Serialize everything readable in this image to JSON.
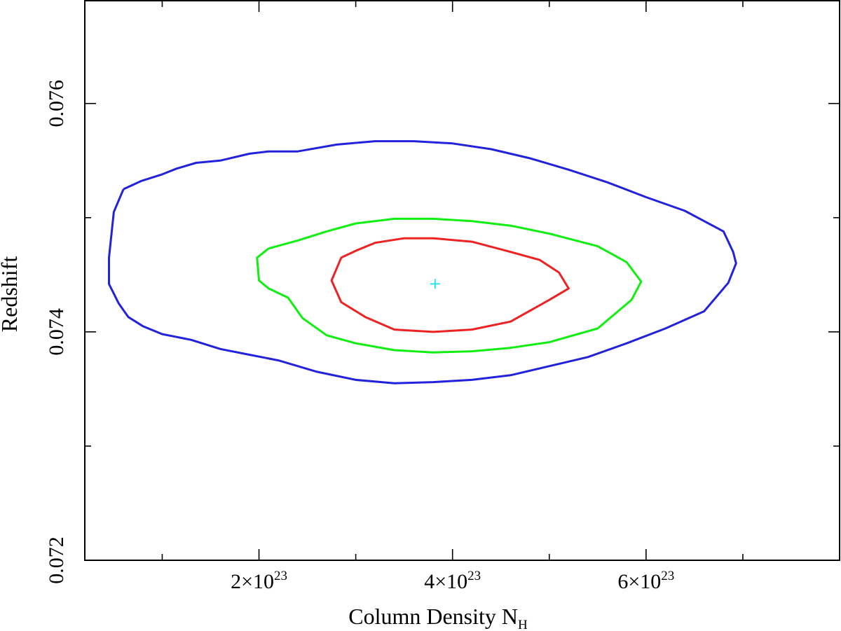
{
  "chart_data": {
    "type": "line",
    "title": "",
    "xlabel": {
      "main": "Column Density N",
      "subscript": "H"
    },
    "ylabel": "Redshift",
    "xlim": [
      2e+22,
      8e+23
    ],
    "ylim": [
      0.072,
      0.0769
    ],
    "grid": false,
    "legend": "none",
    "x_ticks": [
      {
        "value": 2e+23,
        "mantissa": "2×10",
        "exponent": "23"
      },
      {
        "value": 4e+23,
        "mantissa": "4×10",
        "exponent": "23"
      },
      {
        "value": 6e+23,
        "mantissa": "6×10",
        "exponent": "23"
      }
    ],
    "x_minor_ticks": [
      1e+23,
      3e+23,
      5e+23,
      7e+23
    ],
    "y_ticks": [
      {
        "value": 0.072,
        "label": "0.072"
      },
      {
        "value": 0.074,
        "label": "0.074"
      },
      {
        "value": 0.076,
        "label": "0.076"
      }
    ],
    "y_minor_ticks": [
      0.073,
      0.075
    ],
    "best_fit": {
      "x": 3.82e+23,
      "y": 0.07442,
      "color": "#00e5ee"
    },
    "series": [
      {
        "color": "#2222dd",
        "points": [
          [
            6e+22,
            0.07525
          ],
          [
            7.8e+22,
            0.07532
          ],
          [
            1e+23,
            0.07538
          ],
          [
            1.15e+23,
            0.07543
          ],
          [
            1.35e+23,
            0.07548
          ],
          [
            1.6e+23,
            0.0755
          ],
          [
            1.9e+23,
            0.07556
          ],
          [
            2.1e+23,
            0.07558
          ],
          [
            2.4e+23,
            0.07558
          ],
          [
            2.8e+23,
            0.07564
          ],
          [
            3.2e+23,
            0.07567
          ],
          [
            3.6e+23,
            0.07567
          ],
          [
            4e+23,
            0.07565
          ],
          [
            4.4e+23,
            0.0756
          ],
          [
            4.8e+23,
            0.07552
          ],
          [
            5.2e+23,
            0.07542
          ],
          [
            5.6e+23,
            0.07531
          ],
          [
            6e+23,
            0.07518
          ],
          [
            6.4e+23,
            0.07506
          ],
          [
            6.6e+23,
            0.07497
          ],
          [
            6.8e+23,
            0.07488
          ],
          [
            6.9e+23,
            0.0747
          ],
          [
            6.93e+23,
            0.0746
          ],
          [
            6.85e+23,
            0.07443
          ],
          [
            6.6e+23,
            0.07418
          ],
          [
            6.2e+23,
            0.07403
          ],
          [
            5.8e+23,
            0.0739
          ],
          [
            5.4e+23,
            0.07378
          ],
          [
            5e+23,
            0.0737
          ],
          [
            4.6e+23,
            0.07362
          ],
          [
            4.2e+23,
            0.07358
          ],
          [
            3.8e+23,
            0.07356
          ],
          [
            3.4e+23,
            0.07355
          ],
          [
            3e+23,
            0.07358
          ],
          [
            2.6e+23,
            0.07365
          ],
          [
            2.2e+23,
            0.07375
          ],
          [
            1.9e+23,
            0.0738
          ],
          [
            1.6e+23,
            0.07385
          ],
          [
            1.3e+23,
            0.07393
          ],
          [
            1e+23,
            0.07398
          ],
          [
            8e+22,
            0.07405
          ],
          [
            6.5e+22,
            0.07413
          ],
          [
            5.5e+22,
            0.07425
          ],
          [
            4.5e+22,
            0.07442
          ],
          [
            4.5e+22,
            0.07465
          ],
          [
            5e+22,
            0.07505
          ],
          [
            6e+22,
            0.07525
          ]
        ]
      },
      {
        "color": "#11ee11",
        "points": [
          [
            2.1e+23,
            0.07473
          ],
          [
            2.4e+23,
            0.0748
          ],
          [
            2.7e+23,
            0.07488
          ],
          [
            3e+23,
            0.07495
          ],
          [
            3.4e+23,
            0.07499
          ],
          [
            3.8e+23,
            0.07499
          ],
          [
            4.2e+23,
            0.07497
          ],
          [
            4.6e+23,
            0.07493
          ],
          [
            5e+23,
            0.07486
          ],
          [
            5.5e+23,
            0.07475
          ],
          [
            5.8e+23,
            0.07461
          ],
          [
            5.95e+23,
            0.07444
          ],
          [
            5.85e+23,
            0.07428
          ],
          [
            5.5e+23,
            0.07403
          ],
          [
            5e+23,
            0.07391
          ],
          [
            4.6e+23,
            0.07386
          ],
          [
            4.2e+23,
            0.07383
          ],
          [
            3.8e+23,
            0.07382
          ],
          [
            3.4e+23,
            0.07384
          ],
          [
            3e+23,
            0.0739
          ],
          [
            2.7e+23,
            0.07397
          ],
          [
            2.45e+23,
            0.07412
          ],
          [
            2.3e+23,
            0.0743
          ],
          [
            2.1e+23,
            0.07438
          ],
          [
            2e+23,
            0.07445
          ],
          [
            1.98e+23,
            0.07465
          ],
          [
            2.1e+23,
            0.07473
          ]
        ]
      },
      {
        "color": "#ee2222",
        "points": [
          [
            3e+23,
            0.07471
          ],
          [
            3.2e+23,
            0.07478
          ],
          [
            3.5e+23,
            0.07482
          ],
          [
            3.8e+23,
            0.07482
          ],
          [
            4.2e+23,
            0.07479
          ],
          [
            4.6e+23,
            0.0747
          ],
          [
            4.9e+23,
            0.07463
          ],
          [
            5.1e+23,
            0.07452
          ],
          [
            5.2e+23,
            0.07438
          ],
          [
            5e+23,
            0.07428
          ],
          [
            4.6e+23,
            0.07409
          ],
          [
            4.2e+23,
            0.07402
          ],
          [
            3.8e+23,
            0.074
          ],
          [
            3.4e+23,
            0.07402
          ],
          [
            3.1e+23,
            0.07413
          ],
          [
            2.85e+23,
            0.07426
          ],
          [
            2.75e+23,
            0.07445
          ],
          [
            2.85e+23,
            0.07465
          ],
          [
            3e+23,
            0.07471
          ]
        ]
      }
    ]
  }
}
